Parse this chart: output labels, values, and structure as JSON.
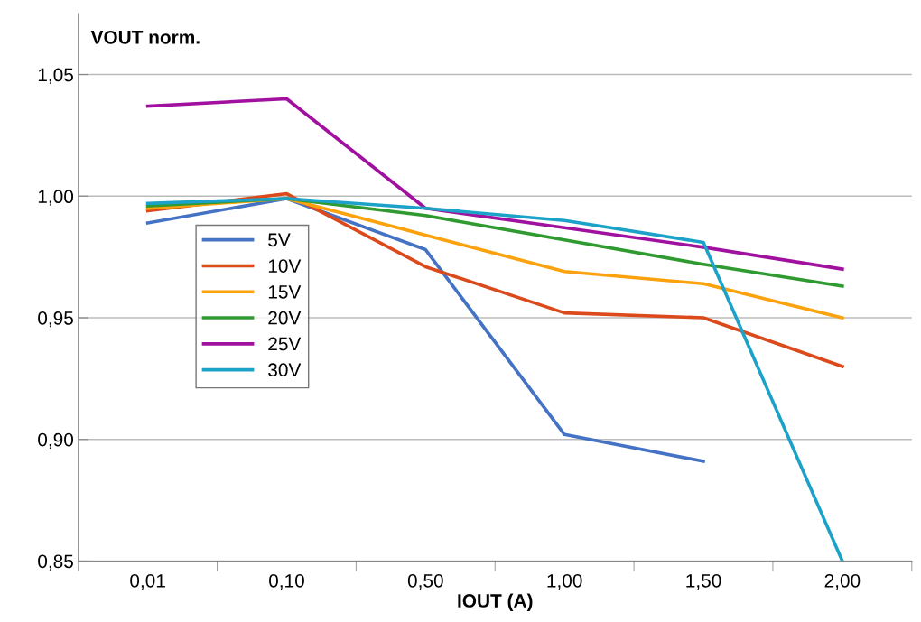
{
  "chart_data": {
    "type": "line",
    "ylabel": "VOUT norm.",
    "xlabel": "IOUT (A)",
    "categories": [
      "0,01",
      "0,10",
      "0,50",
      "1,00",
      "1,50",
      "2,00"
    ],
    "series": [
      {
        "name": "5V",
        "color": "#4472c4",
        "values": [
          0.989,
          0.999,
          0.978,
          0.902,
          0.891,
          null
        ]
      },
      {
        "name": "10V",
        "color": "#dc4a1c",
        "values": [
          0.994,
          1.001,
          0.971,
          0.952,
          0.95,
          0.93
        ]
      },
      {
        "name": "15V",
        "color": "#fca20e",
        "values": [
          0.995,
          0.999,
          0.984,
          0.969,
          0.964,
          0.95
        ]
      },
      {
        "name": "20V",
        "color": "#2f9a2f",
        "values": [
          0.996,
          0.999,
          0.992,
          0.982,
          0.972,
          0.963
        ]
      },
      {
        "name": "25V",
        "color": "#a0119f",
        "values": [
          1.037,
          1.04,
          0.995,
          0.987,
          0.979,
          0.97
        ]
      },
      {
        "name": "30V",
        "color": "#1ca2c8",
        "values": [
          0.997,
          0.999,
          0.995,
          0.99,
          0.981,
          0.85
        ]
      }
    ],
    "ylim": [
      0.85,
      1.075
    ],
    "yticks": [
      {
        "value": 0.85,
        "label": "0,85"
      },
      {
        "value": 0.9,
        "label": "0,90"
      },
      {
        "value": 0.95,
        "label": "0,95"
      },
      {
        "value": 1.0,
        "label": "1,00"
      },
      {
        "value": 1.05,
        "label": "1,05"
      }
    ],
    "grid": "y",
    "legend": "center left",
    "marker": "none",
    "line_style": "solid"
  }
}
